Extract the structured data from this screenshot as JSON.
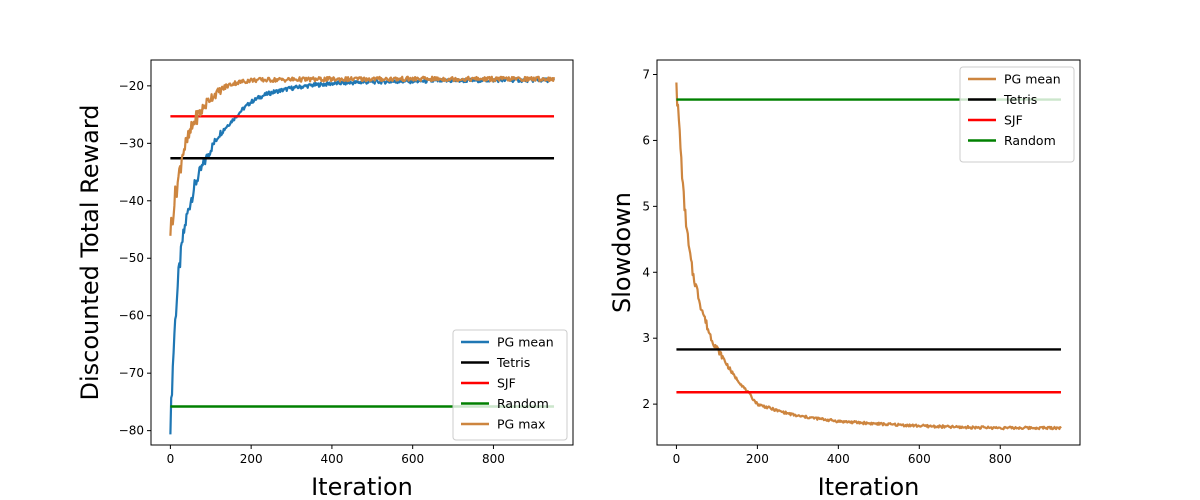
{
  "chart_data": [
    {
      "type": "line",
      "title": "",
      "xlabel": "Iteration",
      "ylabel": "Discounted Total Reward",
      "xlim": [
        -48,
        997
      ],
      "ylim": [
        -82.5,
        -15.5
      ],
      "xticks": [
        0,
        200,
        400,
        600,
        800
      ],
      "yticks": [
        -80,
        -70,
        -60,
        -50,
        -40,
        -30,
        -20
      ],
      "legend": "lower-right",
      "grid": false,
      "series": [
        {
          "name": "PG mean",
          "color": "#1f77b4",
          "kind": "curve",
          "points": [
            [
              0,
              -79
            ],
            [
              3,
              -74
            ],
            [
              6,
              -69
            ],
            [
              10,
              -63
            ],
            [
              15,
              -58
            ],
            [
              20,
              -53
            ],
            [
              25,
              -50
            ],
            [
              30,
              -47
            ],
            [
              40,
              -43
            ],
            [
              50,
              -40
            ],
            [
              60,
              -37.5
            ],
            [
              70,
              -35.5
            ],
            [
              80,
              -34
            ],
            [
              90,
              -32.5
            ],
            [
              100,
              -31
            ],
            [
              120,
              -28.5
            ],
            [
              140,
              -27
            ],
            [
              160,
              -25.5
            ],
            [
              180,
              -24
            ],
            [
              200,
              -22.8
            ],
            [
              220,
              -22
            ],
            [
              240,
              -21.4
            ],
            [
              260,
              -21
            ],
            [
              300,
              -20.4
            ],
            [
              350,
              -19.9
            ],
            [
              400,
              -19.6
            ],
            [
              500,
              -19.3
            ],
            [
              600,
              -19.2
            ],
            [
              700,
              -19.1
            ],
            [
              800,
              -19.0
            ],
            [
              950,
              -19.0
            ]
          ]
        },
        {
          "name": "Tetris",
          "color": "#000000",
          "kind": "hline",
          "value": -32.6,
          "range": [
            0,
            950
          ]
        },
        {
          "name": "SJF",
          "color": "#ff0000",
          "kind": "hline",
          "value": -25.3,
          "range": [
            0,
            950
          ]
        },
        {
          "name": "Random",
          "color": "#008000",
          "kind": "hline",
          "value": -75.8,
          "range": [
            0,
            950
          ]
        },
        {
          "name": "PG max",
          "color": "#cd853f",
          "kind": "curve",
          "points": [
            [
              0,
              -45
            ],
            [
              5,
              -43
            ],
            [
              10,
              -40
            ],
            [
              15,
              -38
            ],
            [
              20,
              -36
            ],
            [
              25,
              -34
            ],
            [
              30,
              -31.5
            ],
            [
              40,
              -30
            ],
            [
              50,
              -28
            ],
            [
              60,
              -26
            ],
            [
              70,
              -25
            ],
            [
              80,
              -24
            ],
            [
              90,
              -23
            ],
            [
              100,
              -22
            ],
            [
              110,
              -21.5
            ],
            [
              120,
              -21
            ],
            [
              140,
              -20
            ],
            [
              160,
              -19.5
            ],
            [
              200,
              -19
            ],
            [
              300,
              -18.9
            ],
            [
              500,
              -18.8
            ],
            [
              700,
              -18.8
            ],
            [
              950,
              -18.8
            ]
          ]
        }
      ]
    },
    {
      "type": "line",
      "title": "",
      "xlabel": "Iteration",
      "ylabel": "Slowdown",
      "xlim": [
        -48,
        997
      ],
      "ylim": [
        1.38,
        7.22
      ],
      "xticks": [
        0,
        200,
        400,
        600,
        800
      ],
      "yticks": [
        2,
        3,
        4,
        5,
        6,
        7
      ],
      "legend": "top-right",
      "grid": false,
      "series": [
        {
          "name": "PG mean",
          "color": "#cd853f",
          "kind": "curve",
          "points": [
            [
              0,
              6.95
            ],
            [
              2,
              6.6
            ],
            [
              5,
              6.4
            ],
            [
              8,
              6.1
            ],
            [
              12,
              5.7
            ],
            [
              16,
              5.3
            ],
            [
              20,
              5.0
            ],
            [
              25,
              4.7
            ],
            [
              30,
              4.4
            ],
            [
              40,
              4.0
            ],
            [
              50,
              3.75
            ],
            [
              60,
              3.5
            ],
            [
              70,
              3.3
            ],
            [
              80,
              3.1
            ],
            [
              90,
              2.95
            ],
            [
              100,
              2.85
            ],
            [
              120,
              2.65
            ],
            [
              140,
              2.45
            ],
            [
              160,
              2.3
            ],
            [
              180,
              2.15
            ],
            [
              200,
              2.0
            ],
            [
              250,
              1.9
            ],
            [
              300,
              1.82
            ],
            [
              400,
              1.74
            ],
            [
              500,
              1.7
            ],
            [
              600,
              1.67
            ],
            [
              700,
              1.65
            ],
            [
              800,
              1.64
            ],
            [
              950,
              1.64
            ]
          ]
        },
        {
          "name": "Tetris",
          "color": "#000000",
          "kind": "hline",
          "value": 2.83,
          "range": [
            0,
            950
          ]
        },
        {
          "name": "SJF",
          "color": "#ff0000",
          "kind": "hline",
          "value": 2.18,
          "range": [
            0,
            950
          ]
        },
        {
          "name": "Random",
          "color": "#008000",
          "kind": "hline",
          "value": 6.62,
          "range": [
            0,
            950
          ]
        }
      ]
    }
  ]
}
